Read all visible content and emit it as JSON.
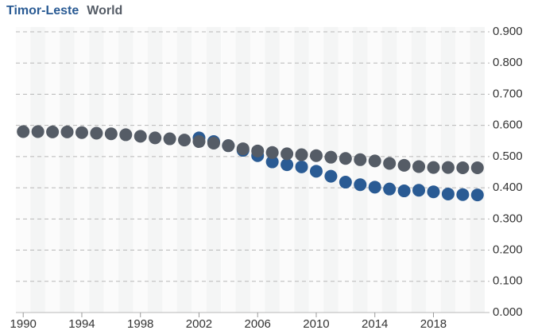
{
  "chart_data": {
    "type": "scatter",
    "x": [
      1990,
      1991,
      1992,
      1993,
      1994,
      1995,
      1996,
      1997,
      1998,
      1999,
      2000,
      2001,
      2002,
      2003,
      2004,
      2005,
      2006,
      2007,
      2008,
      2009,
      2010,
      2011,
      2012,
      2013,
      2014,
      2015,
      2016,
      2017,
      2018,
      2019,
      2020,
      2021
    ],
    "series": [
      {
        "name": "Timor-Leste",
        "color": "#2a5b94",
        "values": [
          null,
          null,
          null,
          null,
          null,
          null,
          null,
          null,
          null,
          null,
          null,
          null,
          0.56,
          0.548,
          0.535,
          0.52,
          0.503,
          0.483,
          0.474,
          0.467,
          0.453,
          0.437,
          0.418,
          0.41,
          0.402,
          0.396,
          0.39,
          0.392,
          0.387,
          0.38,
          0.378,
          0.377
        ]
      },
      {
        "name": "World",
        "color": "#555c66",
        "values": [
          0.58,
          0.58,
          0.579,
          0.579,
          0.577,
          0.575,
          0.573,
          0.57,
          0.565,
          0.56,
          0.557,
          0.553,
          0.548,
          0.543,
          0.535,
          0.525,
          0.518,
          0.513,
          0.509,
          0.506,
          0.503,
          0.498,
          0.494,
          0.49,
          0.486,
          0.478,
          0.472,
          0.468,
          0.465,
          0.465,
          0.464,
          0.464
        ]
      }
    ],
    "xlim": [
      1989.5,
      2021.5
    ],
    "xticks": [
      1990,
      1994,
      1998,
      2002,
      2006,
      2010,
      2014,
      2018
    ],
    "ylim": [
      0,
      0.9
    ],
    "yticks": [
      {
        "value": 0,
        "label": "0.000"
      },
      {
        "value": 0.1,
        "label": "0.100"
      },
      {
        "value": 0.2,
        "label": "0.200"
      },
      {
        "value": 0.3,
        "label": "0.300"
      },
      {
        "value": 0.4,
        "label": "0.400"
      },
      {
        "value": 0.5,
        "label": "0.500"
      },
      {
        "value": 0.6,
        "label": "0.600"
      },
      {
        "value": 0.7,
        "label": "0.700"
      },
      {
        "value": 0.8,
        "label": "0.800"
      },
      {
        "value": 0.9,
        "label": "0.900"
      }
    ],
    "grid": true
  }
}
